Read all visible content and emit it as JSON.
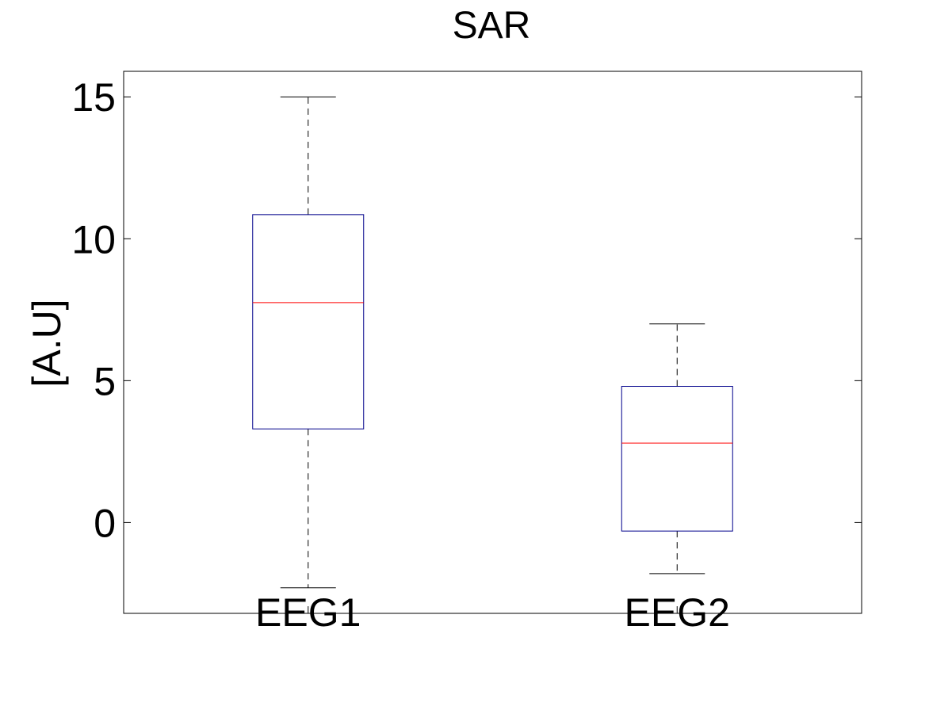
{
  "chart_data": {
    "type": "boxplot",
    "title": "SAR",
    "xlabel": "",
    "ylabel": "[A.U]",
    "ylim": [
      -3.2,
      15.9
    ],
    "yticks": [
      0,
      5,
      10,
      15
    ],
    "grid": false,
    "categories": [
      "EEG1",
      "EEG2"
    ],
    "boxes": [
      {
        "label": "EEG1",
        "whisker_low": -2.3,
        "q1": 3.3,
        "median": 7.75,
        "q3": 10.85,
        "whisker_high": 15.0
      },
      {
        "label": "EEG2",
        "whisker_low": -1.8,
        "q1": -0.3,
        "median": 2.8,
        "q3": 4.8,
        "whisker_high": 7.0
      }
    ],
    "colors": {
      "box": "#00008b",
      "median": "#ff0000",
      "whisker": "#000000",
      "axes": "#000000"
    }
  }
}
